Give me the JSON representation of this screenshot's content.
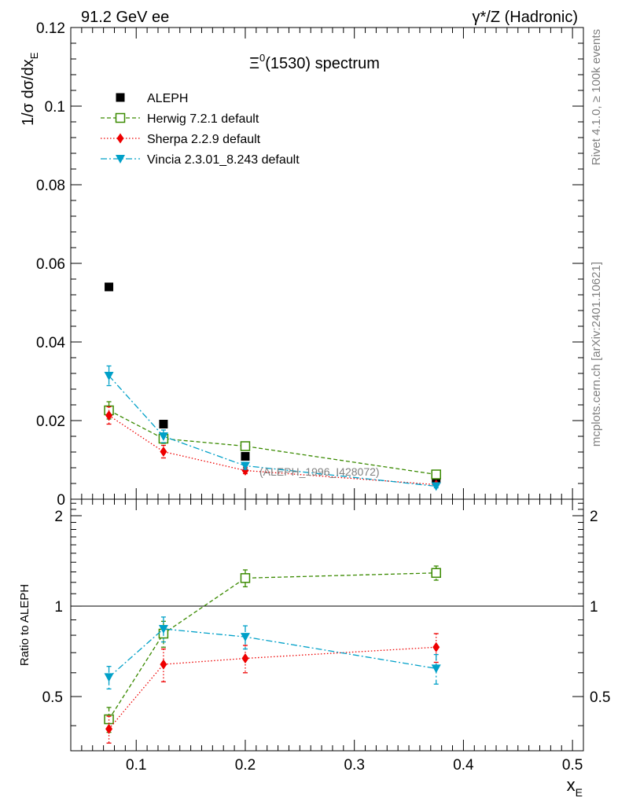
{
  "header": {
    "left": "91.2 GeV ee",
    "right": "γ*/Z (Hadronic)"
  },
  "side_labels": {
    "rivet": "Rivet 4.1.0, ≥ 100k events",
    "mcplots": "mcplots.cern.ch [arXiv:2401.10621]"
  },
  "chart_data": [
    {
      "type": "scatter",
      "panel": "main",
      "title": "Ξ⁰(1530) spectrum",
      "title_base": "Ξ",
      "title_sup": "0",
      "title_rest": "(1530) spectrum",
      "xlabel": "x_E",
      "ylabel": "1/σ  dσ/dx_E",
      "xlim": [
        0.04,
        0.51
      ],
      "ylim": [
        0,
        0.12
      ],
      "y_ticks": [
        0,
        0.02,
        0.04,
        0.06,
        0.08,
        0.1,
        0.12
      ],
      "y_tick_labels": [
        "0",
        "0.02",
        "0.04",
        "0.06",
        "0.08",
        "0.1",
        "0.12"
      ],
      "annotation": "(ALEPH_1996_I428072)",
      "series": [
        {
          "name": "ALEPH",
          "color": "#000000",
          "marker": "square-filled",
          "line": "none",
          "x": [
            0.075,
            0.125,
            0.2,
            0.375
          ],
          "y": [
            0.054,
            0.0191,
            0.0109,
            0.0051
          ],
          "err": [
            0,
            0,
            0,
            0
          ]
        },
        {
          "name": "Herwig 7.2.1 default",
          "color": "#3a8a00",
          "marker": "square-open",
          "line": "dashed",
          "x": [
            0.075,
            0.125,
            0.2,
            0.375
          ],
          "y": [
            0.0226,
            0.0154,
            0.0135,
            0.0063
          ],
          "err": [
            0.0022,
            0.0012,
            0.0007,
            0.0005
          ]
        },
        {
          "name": "Sherpa 2.2.9 default",
          "color": "#ee0000",
          "marker": "diamond-filled",
          "line": "dotted",
          "x": [
            0.075,
            0.125,
            0.2,
            0.375
          ],
          "y": [
            0.0213,
            0.0121,
            0.0073,
            0.0037
          ],
          "err": [
            0.0022,
            0.0016,
            0.0008,
            0.0004
          ]
        },
        {
          "name": "Vincia 2.3.01_8.243 default",
          "color": "#00a0c8",
          "marker": "triangle-down-filled",
          "line": "dashdot",
          "x": [
            0.075,
            0.125,
            0.2,
            0.375
          ],
          "y": [
            0.0314,
            0.016,
            0.0085,
            0.0033
          ],
          "err": [
            0.0025,
            0.0016,
            0.0009,
            0.0004
          ]
        }
      ]
    },
    {
      "type": "scatter",
      "panel": "ratio",
      "xlabel": "x_E",
      "xlabel_base": "x",
      "xlabel_sub": "E",
      "ylabel": "Ratio to ALEPH",
      "xlim": [
        0.04,
        0.51
      ],
      "ylim": [
        0.33,
        2.27
      ],
      "x_ticks": [
        0.1,
        0.2,
        0.3,
        0.4,
        0.5
      ],
      "x_tick_labels": [
        "0.1",
        "0.2",
        "0.3",
        "0.4",
        "0.5"
      ],
      "y_ticks": [
        0.5,
        1,
        2
      ],
      "y_tick_labels": [
        "0.5",
        "1",
        "2"
      ],
      "reference": 1,
      "series": [
        {
          "name": "Herwig 7.2.1 default",
          "color": "#3a8a00",
          "marker": "square-open",
          "line": "dashed",
          "x": [
            0.075,
            0.125,
            0.2,
            0.375
          ],
          "y": [
            0.42,
            0.81,
            1.24,
            1.29
          ],
          "err": [
            0.04,
            0.08,
            0.08,
            0.07
          ]
        },
        {
          "name": "Sherpa 2.2.9 default",
          "color": "#ee0000",
          "marker": "diamond-filled",
          "line": "dotted",
          "x": [
            0.075,
            0.125,
            0.2,
            0.375
          ],
          "y": [
            0.39,
            0.64,
            0.67,
            0.73
          ],
          "err": [
            0.04,
            0.08,
            0.07,
            0.08
          ]
        },
        {
          "name": "Vincia 2.3.01_8.243 default",
          "color": "#00a0c8",
          "marker": "triangle-down-filled",
          "line": "dashdot",
          "x": [
            0.075,
            0.125,
            0.2,
            0.375
          ],
          "y": [
            0.58,
            0.84,
            0.79,
            0.62
          ],
          "err": [
            0.05,
            0.08,
            0.07,
            0.07
          ]
        }
      ]
    }
  ]
}
